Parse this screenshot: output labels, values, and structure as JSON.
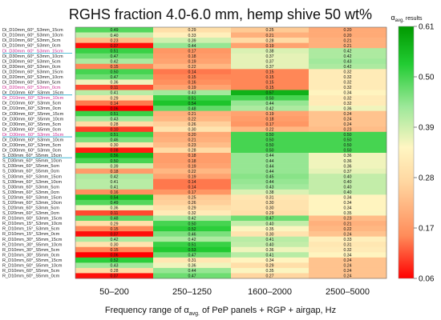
{
  "chart_data": {
    "type": "heatmap",
    "title": "RGHS fraction 4.0-6.0 mm, hemp shive 50 wt%",
    "xlabel_parts": [
      "Frequency range of α",
      "avg.",
      " of PeP panels + RGP + airgap, Hz"
    ],
    "x_categories": [
      "50–200",
      "250–1250",
      "1600–2000",
      "2500–5000"
    ],
    "colorbar": {
      "title_main": "α",
      "title_sub": "avg.",
      "title_suffix": " results",
      "range": [
        0.06,
        0.61
      ],
      "ticks": [
        "0.61",
        "0.50",
        "0.39",
        "0.28",
        "0.17",
        "0.06"
      ]
    },
    "rows": [
      {
        "label": "Di_D10mm_60°_S3mm_15cm",
        "values": [
          "0.49",
          "0.29",
          "0.25",
          "0.20"
        ]
      },
      {
        "label": "Di_D10mm_60°_S3mm_10cm",
        "values": [
          "0.40",
          "0.33",
          "0.21",
          "0.20"
        ]
      },
      {
        "label": "Di_D10mm_60°_S3mm_5cm",
        "values": [
          "0.23",
          "0.39",
          "0.28",
          "0.21"
        ]
      },
      {
        "label": "Di_D10mm_60°_S3mm_0cm",
        "values": [
          "0.07",
          "0.44",
          "0.19",
          "0.21"
        ]
      },
      {
        "label": "Di_D30mm_60°_S3mm_15cm",
        "values": [
          "0.51",
          "0.17",
          "0.38",
          "0.42"
        ]
      },
      {
        "label": "Di_D30mm_60°_S3mm_10cm",
        "values": [
          "0.47",
          "0.18",
          "0.37",
          "0.42"
        ]
      },
      {
        "label": "Di_D30mm_60°_S3mm_5cm",
        "values": [
          "0.42",
          "0.19",
          "0.37",
          "0.43"
        ]
      },
      {
        "label": "Di_D30mm_60°_S3mm_0cm",
        "values": [
          "0.15",
          "0.22",
          "0.37",
          "0.42"
        ]
      },
      {
        "label": "Di_D20mm_60°_S3mm_15cm",
        "values": [
          "0.50",
          "0.14",
          "0.15",
          "0.32"
        ]
      },
      {
        "label": "Di_D20mm_60°_S3mm_10cm",
        "values": [
          "0.47",
          "0.15",
          "0.15",
          "0.32"
        ]
      },
      {
        "label": "Di_D20mm_60°_S3mm_5cm",
        "values": [
          "0.36",
          "0.16",
          "0.15",
          "0.32"
        ]
      },
      {
        "label": "Di_D20mm_60°_S3mm_0cm",
        "values": [
          "0.11",
          "0.19",
          "0.15",
          "0.32"
        ]
      },
      {
        "label": "Dr_D10mm_60°_S3mm_15cm",
        "values": [
          "0.41",
          "0.43",
          "0.57",
          "0.34"
        ]
      },
      {
        "label": "Dr_D10mm_60°_S3mm_10cm",
        "values": [
          "0.29",
          "0.51",
          "0.50",
          "0.32"
        ]
      },
      {
        "label": "Dr_D10mm_60°_S3mm_5cm",
        "values": [
          "0.14",
          "0.54",
          "0.44",
          "0.32"
        ]
      },
      {
        "label": "Dr_D10mm_60°_S3mm_0cm",
        "values": [
          "0.06",
          "0.48",
          "0.42",
          "0.36"
        ]
      },
      {
        "label": "Dr_D30mm_60°_S5mm_15cm",
        "values": [
          "0.51",
          "0.21",
          "0.19",
          "0.24"
        ]
      },
      {
        "label": "Dr_D30mm_60°_S5mm_10cm",
        "values": [
          "0.43",
          "0.22",
          "0.18",
          "0.24"
        ]
      },
      {
        "label": "Dr_D30mm_60°_S5mm_5cm",
        "values": [
          "0.28",
          "0.26",
          "0.17",
          "0.24"
        ]
      },
      {
        "label": "Dr_D30mm_60°_S5mm_0cm",
        "values": [
          "0.10",
          "0.30",
          "0.22",
          "0.23"
        ]
      },
      {
        "label": "Dr_D30mm_60°_S3mm_15cm",
        "values": [
          "0.51",
          "0.20",
          "0.50",
          "0.50"
        ]
      },
      {
        "label": "Dr_D30mm_60°_S3mm_10cm",
        "values": [
          "0.46",
          "0.21",
          "0.50",
          "0.50"
        ]
      },
      {
        "label": "Dr_D30mm_60°_S3mm_5cm",
        "values": [
          "0.30",
          "0.23",
          "0.50",
          "0.50"
        ]
      },
      {
        "label": "Dr_D30mm_60°_S3mm_0cm",
        "values": [
          "0.08",
          "0.28",
          "0.50",
          "0.50"
        ]
      },
      {
        "label": "S_D30mm_60°_S5mm_15cm",
        "values": [
          "0.56",
          "0.18",
          "0.44",
          "0.36"
        ]
      },
      {
        "label": "S_D30mm_60°_S5mm_10cm",
        "values": [
          "0.50",
          "0.18",
          "0.44",
          "0.36"
        ]
      },
      {
        "label": "S_D30mm_60°_S5mm_5cm",
        "values": [
          "0.39",
          "0.19",
          "0.44",
          "0.36"
        ]
      },
      {
        "label": "S_D30mm_60°_S5mm_0cm",
        "values": [
          "0.18",
          "0.22",
          "0.44",
          "0.37"
        ]
      },
      {
        "label": "S_D30mm_60°_S3mm_15cm",
        "values": [
          "0.42",
          "0.19",
          "0.45",
          "0.40"
        ]
      },
      {
        "label": "S_D30mm_60°_S3mm_10cm",
        "values": [
          "0.41",
          "0.14",
          "0.44",
          "0.40"
        ]
      },
      {
        "label": "S_D30mm_60°_S3mm_5cm",
        "values": [
          "0.41",
          "0.14",
          "0.43",
          "0.40"
        ]
      },
      {
        "label": "S_D30mm_60°_S3mm_0cm",
        "values": [
          "0.16",
          "0.17",
          "0.38",
          "0.40"
        ]
      },
      {
        "label": "S_D20mm_60°_S3mm_15cm",
        "values": [
          "0.54",
          "0.25",
          "0.31",
          "0.34"
        ]
      },
      {
        "label": "S_D20mm_60°_S3mm_10cm",
        "values": [
          "0.49",
          "0.26",
          "0.30",
          "0.34"
        ]
      },
      {
        "label": "S_D20mm_60°_S3mm_5cm",
        "values": [
          "0.36",
          "0.29",
          "0.30",
          "0.34"
        ]
      },
      {
        "label": "S_D20mm_60°_S3mm_0cm",
        "values": [
          "0.11",
          "0.32",
          "0.29",
          "0.35"
        ]
      },
      {
        "label": "R_D10mm_60°_S3mm_15cm",
        "values": [
          "0.48",
          "0.42",
          "0.47",
          "0.23"
        ]
      },
      {
        "label": "R_D10mm_15°_S3mm_10cm",
        "values": [
          "0.29",
          "0.50",
          "0.40",
          "0.21"
        ]
      },
      {
        "label": "R_D10mm_15°_S3mm_5cm",
        "values": [
          "0.15",
          "0.52",
          "0.35",
          "0.22"
        ]
      },
      {
        "label": "R_D10mm_15°_S3mm_0cm",
        "values": [
          "0.07",
          "0.46",
          "0.30",
          "0.24"
        ]
      },
      {
        "label": "R_D10mm_30°_S5mm_15cm",
        "values": [
          "0.42",
          "0.42",
          "0.41",
          "0.33"
        ]
      },
      {
        "label": "R_D10mm_30°_S5mm_10cm",
        "values": [
          "0.30",
          "0.51",
          "0.40",
          "0.31"
        ]
      },
      {
        "label": "R_D10mm_30°_S5mm_5cm",
        "values": [
          "0.15",
          "0.53",
          "0.36",
          "0.32"
        ]
      },
      {
        "label": "R_D10mm_30°_S5mm_0cm",
        "values": [
          "0.06",
          "0.47",
          "0.41",
          "0.34"
        ]
      },
      {
        "label": "R_D10mm_60°_S5mm_15cm",
        "values": [
          "0.52",
          "0.31",
          "0.34",
          "0.24"
        ]
      },
      {
        "label": "R_D10mm_60°_S5mm_10cm",
        "values": [
          "0.43",
          "0.36",
          "0.29",
          "0.24"
        ]
      },
      {
        "label": "R_D10mm_60°_S5mm_5cm",
        "values": [
          "0.28",
          "0.44",
          "0.35",
          "0.24"
        ]
      },
      {
        "label": "R_D10mm_60°_S5mm_0cm",
        "values": [
          "0.07",
          "0.47",
          "0.27",
          "0.24"
        ]
      }
    ],
    "highlight_colors": {
      "magenta": "#cc2a8f",
      "cyan": "#22aacc"
    },
    "colormap": [
      "#ff0000",
      "#ff8c5a",
      "#ffd6a0",
      "#fff6c2",
      "#9ee89a",
      "#22cc33",
      "#009900"
    ]
  }
}
